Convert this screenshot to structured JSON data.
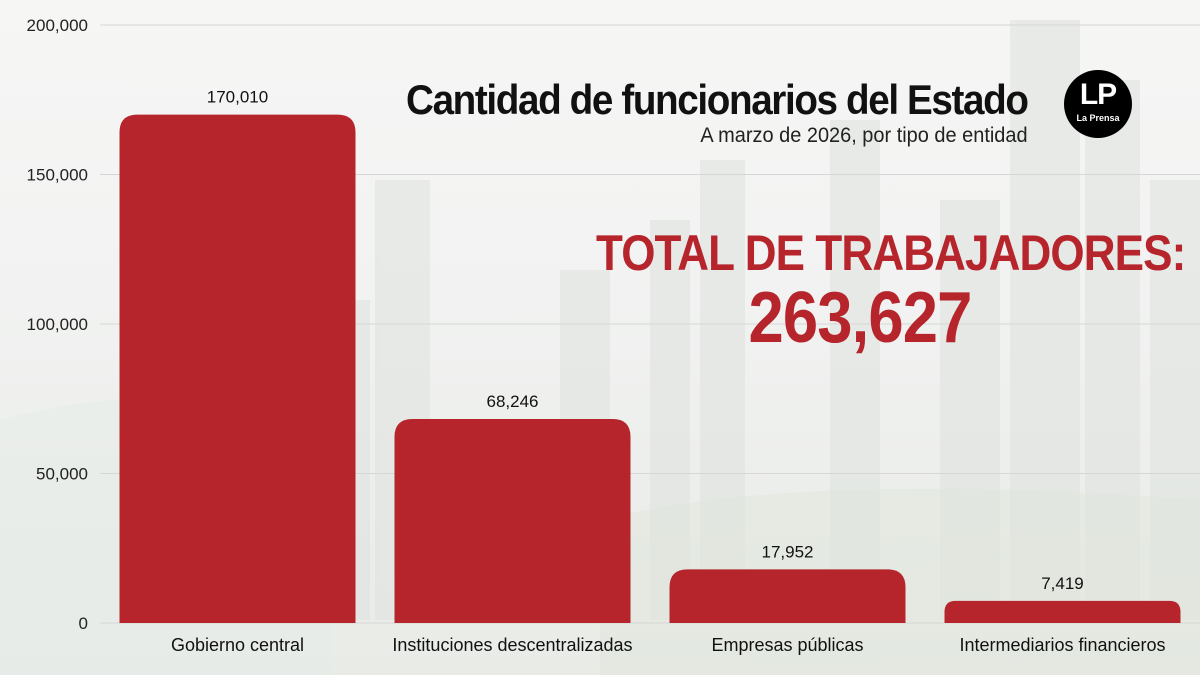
{
  "header": {
    "title": "Cantidad de funcionarios del Estado",
    "subtitle": "A marzo de 2026, por tipo de entidad"
  },
  "logo": {
    "mark": "LP",
    "name": "La Prensa"
  },
  "total": {
    "label": "TOTAL DE TRABAJADORES:",
    "value": "263,627"
  },
  "colors": {
    "bar": "#b5252b",
    "total_text": "#b5252b",
    "title_text": "#111111",
    "grid": "#d6d6d6"
  },
  "chart_data": {
    "type": "bar",
    "title": "Cantidad de funcionarios del Estado",
    "subtitle": "A marzo de 2026, por tipo de entidad",
    "categories": [
      "Gobierno central",
      "Instituciones descentralizadas",
      "Empresas públicas",
      "Intermediarios financieros"
    ],
    "values": [
      170010,
      68246,
      17952,
      7419
    ],
    "value_labels": [
      "170,010",
      "68,246",
      "17,952",
      "7,419"
    ],
    "ylim": [
      0,
      200000
    ],
    "yticks": [
      0,
      50000,
      100000,
      150000,
      200000
    ],
    "ytick_labels": [
      "0",
      "50,000",
      "100,000",
      "150,000",
      "200,000"
    ],
    "xlabel": "",
    "ylabel": "",
    "grid": true
  }
}
